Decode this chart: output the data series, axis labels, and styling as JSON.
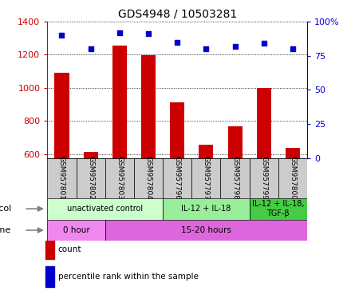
{
  "title": "GDS4948 / 10503281",
  "samples": [
    "GSM957801",
    "GSM957802",
    "GSM957803",
    "GSM957804",
    "GSM957796",
    "GSM957797",
    "GSM957798",
    "GSM957799",
    "GSM957800"
  ],
  "counts": [
    1090,
    612,
    1255,
    1195,
    910,
    655,
    765,
    1000,
    635
  ],
  "percentile_ranks": [
    90,
    80,
    92,
    91,
    85,
    80,
    82,
    84,
    80
  ],
  "ylim_left": [
    575,
    1400
  ],
  "ylim_right": [
    0,
    100
  ],
  "yticks_left": [
    600,
    800,
    1000,
    1200,
    1400
  ],
  "yticks_right": [
    0,
    25,
    50,
    75,
    100
  ],
  "bar_color": "#cc0000",
  "dot_color": "#0000cc",
  "protocol_groups": [
    {
      "label": "unactivated control",
      "start": 0,
      "end": 4,
      "color": "#ccffcc"
    },
    {
      "label": "IL-12 + IL-18",
      "start": 4,
      "end": 7,
      "color": "#99ee99"
    },
    {
      "label": "IL-12 + IL-18,\nTGF-β",
      "start": 7,
      "end": 9,
      "color": "#44cc44"
    }
  ],
  "time_groups": [
    {
      "label": "0 hour",
      "start": 0,
      "end": 2,
      "color": "#ee88ee"
    },
    {
      "label": "15-20 hours",
      "start": 2,
      "end": 9,
      "color": "#dd66dd"
    }
  ],
  "grid_linestyle": "dotted",
  "legend_items": [
    {
      "color": "#cc0000",
      "label": "count"
    },
    {
      "color": "#0000cc",
      "label": "percentile rank within the sample"
    }
  ],
  "left_axis_color": "#cc0000",
  "right_axis_color": "#0000cc",
  "background_color": "#ffffff",
  "sample_box_color": "#cccccc"
}
